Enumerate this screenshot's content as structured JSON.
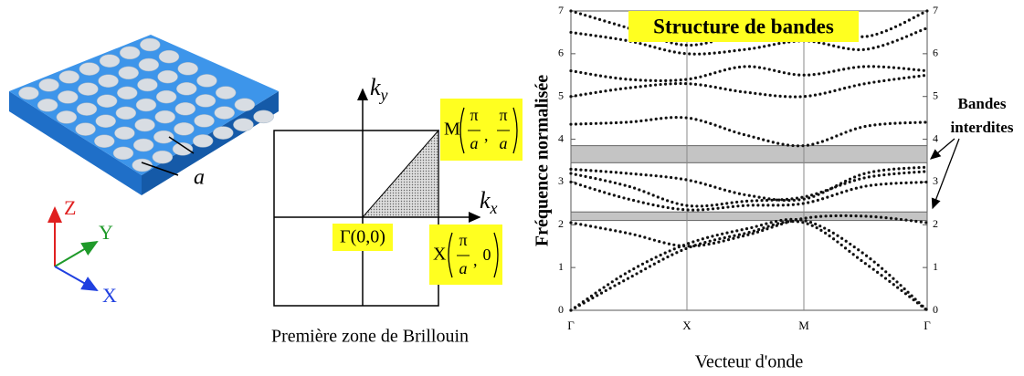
{
  "crystal": {
    "axes": {
      "z": "Z",
      "y": "Y",
      "x": "X"
    },
    "lattice_label": "a"
  },
  "brillouin": {
    "ky": {
      "base": "k",
      "sub": "y"
    },
    "kx": {
      "base": "k",
      "sub": "x"
    },
    "point_m": {
      "name": "M",
      "x_num": "π",
      "x_den": "a",
      "sep": ",",
      "y_num": "π",
      "y_den": "a"
    },
    "point_gamma": "Γ(0,0)",
    "point_x": {
      "name": "X",
      "x_num": "π",
      "x_den": "a",
      "sep": ",",
      "y": "0"
    },
    "caption": "Première zone de Brillouin"
  },
  "chart_data": {
    "type": "line",
    "title": "Structure de bandes",
    "x_label": "Vecteur d'onde",
    "y_label": "Fréquence normalisée",
    "categories": [
      "Γ",
      null,
      "X",
      null,
      "M",
      null,
      "Γ"
    ],
    "ylim": [
      0,
      7
    ],
    "yticks": [
      0,
      1,
      2,
      3,
      4,
      5,
      6,
      7
    ],
    "color": "#111111",
    "series": [
      {
        "values": [
          0,
          0.75,
          1.45,
          1.8,
          2.05,
          1.1,
          0
        ]
      },
      {
        "values": [
          0,
          0.9,
          1.55,
          1.9,
          2.1,
          1.3,
          0
        ]
      },
      {
        "values": [
          2.05,
          1.8,
          1.5,
          1.75,
          2.15,
          2.2,
          2.05
        ]
      },
      {
        "values": [
          3.0,
          2.6,
          2.35,
          2.45,
          2.5,
          2.9,
          3.0
        ]
      },
      {
        "values": [
          3.2,
          2.9,
          2.45,
          2.55,
          2.65,
          3.1,
          3.25
        ]
      },
      {
        "values": [
          3.3,
          3.2,
          3.05,
          2.7,
          2.6,
          3.2,
          3.35
        ]
      },
      {
        "values": [
          4.35,
          4.4,
          4.5,
          4.1,
          3.85,
          4.3,
          4.4
        ]
      },
      {
        "values": [
          5.0,
          5.2,
          5.3,
          5.1,
          5.0,
          5.3,
          5.5
        ]
      },
      {
        "values": [
          5.6,
          5.4,
          5.4,
          5.7,
          5.5,
          5.7,
          5.6
        ]
      },
      {
        "values": [
          6.5,
          6.3,
          6.0,
          6.1,
          6.3,
          6.1,
          6.6
        ]
      },
      {
        "values": [
          7.0,
          6.6,
          6.2,
          6.5,
          6.75,
          6.4,
          7.0
        ]
      }
    ],
    "gaps": [
      {
        "from": 3.45,
        "to": 3.85
      },
      {
        "from": 2.1,
        "to": 2.3
      }
    ],
    "annotation": [
      "Bandes",
      "interdites"
    ]
  }
}
